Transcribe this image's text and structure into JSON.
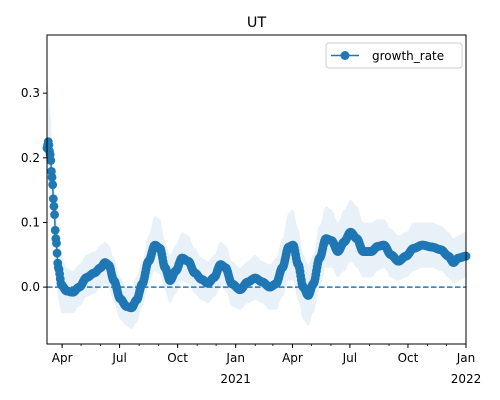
{
  "chart_data": {
    "type": "line",
    "title": "UT",
    "xlabel": "",
    "ylabel": "",
    "x_start": "2020-03-08",
    "x_end": "2022-01-01",
    "ylim": [
      -0.088,
      0.39
    ],
    "y_ticks": [
      0.0,
      0.1,
      0.2,
      0.3
    ],
    "y_tick_labels": [
      "0.0",
      "0.1",
      "0.2",
      "0.3"
    ],
    "x_ticks": [
      {
        "date": "2020-04-01",
        "label": "Apr",
        "sublabel": ""
      },
      {
        "date": "2020-07-01",
        "label": "Jul",
        "sublabel": ""
      },
      {
        "date": "2020-10-01",
        "label": "Oct",
        "sublabel": ""
      },
      {
        "date": "2021-01-01",
        "label": "Jan",
        "sublabel": "2021"
      },
      {
        "date": "2021-04-01",
        "label": "Apr",
        "sublabel": ""
      },
      {
        "date": "2021-07-01",
        "label": "Jul",
        "sublabel": ""
      },
      {
        "date": "2021-10-01",
        "label": "Oct",
        "sublabel": ""
      },
      {
        "date": "2022-01-01",
        "label": "Jan",
        "sublabel": "2022"
      }
    ],
    "reference_line": {
      "y": 0.0,
      "style": "dashed",
      "color": "#1f77b4"
    },
    "legend": {
      "position": "top-right",
      "entries": [
        {
          "label": "growth_rate",
          "color": "#1f77b4",
          "marker": "circle"
        }
      ]
    },
    "grid": false,
    "series": [
      {
        "name": "growth_rate",
        "color": "#1f77b4",
        "band_color": "#1f77b4",
        "band_opacity": 0.1,
        "points": [
          {
            "x": "2020-03-08",
            "y": 0.215,
            "lo": 0.15,
            "hi": 0.33
          },
          {
            "x": "2020-03-10",
            "y": 0.225,
            "lo": 0.16,
            "hi": 0.31
          },
          {
            "x": "2020-03-13",
            "y": 0.205,
            "lo": 0.15,
            "hi": 0.27
          },
          {
            "x": "2020-03-16",
            "y": 0.17,
            "lo": 0.12,
            "hi": 0.23
          },
          {
            "x": "2020-03-19",
            "y": 0.125,
            "lo": 0.08,
            "hi": 0.17
          },
          {
            "x": "2020-03-22",
            "y": 0.075,
            "lo": 0.03,
            "hi": 0.12
          },
          {
            "x": "2020-03-26",
            "y": 0.03,
            "lo": -0.02,
            "hi": 0.08
          },
          {
            "x": "2020-03-31",
            "y": 0.003,
            "lo": -0.04,
            "hi": 0.05
          },
          {
            "x": "2020-04-08",
            "y": -0.006,
            "lo": -0.04,
            "hi": 0.03
          },
          {
            "x": "2020-04-18",
            "y": -0.008,
            "lo": -0.04,
            "hi": 0.025
          },
          {
            "x": "2020-04-28",
            "y": 0.0,
            "lo": -0.03,
            "hi": 0.035
          },
          {
            "x": "2020-05-10",
            "y": 0.015,
            "lo": -0.015,
            "hi": 0.05
          },
          {
            "x": "2020-05-22",
            "y": 0.022,
            "lo": -0.01,
            "hi": 0.055
          },
          {
            "x": "2020-06-01",
            "y": 0.03,
            "lo": 0.0,
            "hi": 0.065
          },
          {
            "x": "2020-06-08",
            "y": 0.038,
            "lo": 0.005,
            "hi": 0.07
          },
          {
            "x": "2020-06-14",
            "y": 0.034,
            "lo": 0.0,
            "hi": 0.065
          },
          {
            "x": "2020-06-22",
            "y": 0.01,
            "lo": -0.025,
            "hi": 0.045
          },
          {
            "x": "2020-07-02",
            "y": -0.018,
            "lo": -0.05,
            "hi": 0.015
          },
          {
            "x": "2020-07-12",
            "y": -0.03,
            "lo": -0.06,
            "hi": 0.0
          },
          {
            "x": "2020-07-20",
            "y": -0.032,
            "lo": -0.065,
            "hi": 0.0
          },
          {
            "x": "2020-07-28",
            "y": -0.02,
            "lo": -0.055,
            "hi": 0.015
          },
          {
            "x": "2020-08-06",
            "y": 0.005,
            "lo": -0.03,
            "hi": 0.04
          },
          {
            "x": "2020-08-16",
            "y": 0.04,
            "lo": 0.005,
            "hi": 0.08
          },
          {
            "x": "2020-08-26",
            "y": 0.065,
            "lo": 0.025,
            "hi": 0.11
          },
          {
            "x": "2020-09-03",
            "y": 0.06,
            "lo": 0.02,
            "hi": 0.105
          },
          {
            "x": "2020-09-11",
            "y": 0.03,
            "lo": -0.005,
            "hi": 0.07
          },
          {
            "x": "2020-09-19",
            "y": 0.01,
            "lo": -0.025,
            "hi": 0.05
          },
          {
            "x": "2020-09-28",
            "y": 0.025,
            "lo": -0.01,
            "hi": 0.065
          },
          {
            "x": "2020-10-08",
            "y": 0.045,
            "lo": 0.01,
            "hi": 0.085
          },
          {
            "x": "2020-10-18",
            "y": 0.04,
            "lo": 0.005,
            "hi": 0.08
          },
          {
            "x": "2020-10-28",
            "y": 0.022,
            "lo": -0.01,
            "hi": 0.06
          },
          {
            "x": "2020-11-08",
            "y": 0.012,
            "lo": -0.02,
            "hi": 0.045
          },
          {
            "x": "2020-11-18",
            "y": 0.006,
            "lo": -0.025,
            "hi": 0.04
          },
          {
            "x": "2020-11-28",
            "y": 0.015,
            "lo": -0.015,
            "hi": 0.05
          },
          {
            "x": "2020-12-08",
            "y": 0.035,
            "lo": 0.0,
            "hi": 0.07
          },
          {
            "x": "2020-12-16",
            "y": 0.03,
            "lo": -0.005,
            "hi": 0.065
          },
          {
            "x": "2020-12-26",
            "y": 0.005,
            "lo": -0.03,
            "hi": 0.04
          },
          {
            "x": "2021-01-08",
            "y": -0.004,
            "lo": -0.035,
            "hi": 0.03
          },
          {
            "x": "2021-01-20",
            "y": 0.008,
            "lo": -0.025,
            "hi": 0.04
          },
          {
            "x": "2021-02-01",
            "y": 0.014,
            "lo": -0.02,
            "hi": 0.05
          },
          {
            "x": "2021-02-12",
            "y": 0.008,
            "lo": -0.025,
            "hi": 0.04
          },
          {
            "x": "2021-02-24",
            "y": 0.0,
            "lo": -0.035,
            "hi": 0.035
          },
          {
            "x": "2021-03-06",
            "y": 0.005,
            "lo": -0.035,
            "hi": 0.045
          },
          {
            "x": "2021-03-16",
            "y": 0.03,
            "lo": -0.015,
            "hi": 0.075
          },
          {
            "x": "2021-03-26",
            "y": 0.062,
            "lo": 0.01,
            "hi": 0.115
          },
          {
            "x": "2021-04-02",
            "y": 0.065,
            "lo": 0.01,
            "hi": 0.12
          },
          {
            "x": "2021-04-10",
            "y": 0.035,
            "lo": -0.02,
            "hi": 0.09
          },
          {
            "x": "2021-04-18",
            "y": 0.0,
            "lo": -0.05,
            "hi": 0.05
          },
          {
            "x": "2021-04-26",
            "y": -0.013,
            "lo": -0.06,
            "hi": 0.035
          },
          {
            "x": "2021-05-04",
            "y": 0.005,
            "lo": -0.04,
            "hi": 0.05
          },
          {
            "x": "2021-05-14",
            "y": 0.045,
            "lo": 0.0,
            "hi": 0.095
          },
          {
            "x": "2021-05-24",
            "y": 0.075,
            "lo": 0.03,
            "hi": 0.125
          },
          {
            "x": "2021-06-02",
            "y": 0.072,
            "lo": 0.03,
            "hi": 0.12
          },
          {
            "x": "2021-06-12",
            "y": 0.055,
            "lo": 0.015,
            "hi": 0.1
          },
          {
            "x": "2021-06-22",
            "y": 0.07,
            "lo": 0.025,
            "hi": 0.12
          },
          {
            "x": "2021-07-02",
            "y": 0.085,
            "lo": 0.04,
            "hi": 0.135
          },
          {
            "x": "2021-07-12",
            "y": 0.075,
            "lo": 0.03,
            "hi": 0.125
          },
          {
            "x": "2021-07-22",
            "y": 0.055,
            "lo": 0.015,
            "hi": 0.1
          },
          {
            "x": "2021-08-04",
            "y": 0.055,
            "lo": 0.015,
            "hi": 0.1
          },
          {
            "x": "2021-08-14",
            "y": 0.063,
            "lo": 0.025,
            "hi": 0.105
          },
          {
            "x": "2021-08-24",
            "y": 0.065,
            "lo": 0.03,
            "hi": 0.105
          },
          {
            "x": "2021-09-04",
            "y": 0.05,
            "lo": 0.015,
            "hi": 0.09
          },
          {
            "x": "2021-09-16",
            "y": 0.04,
            "lo": 0.01,
            "hi": 0.08
          },
          {
            "x": "2021-09-28",
            "y": 0.048,
            "lo": 0.015,
            "hi": 0.085
          },
          {
            "x": "2021-10-10",
            "y": 0.06,
            "lo": 0.025,
            "hi": 0.1
          },
          {
            "x": "2021-10-24",
            "y": 0.065,
            "lo": 0.03,
            "hi": 0.1
          },
          {
            "x": "2021-11-08",
            "y": 0.062,
            "lo": 0.03,
            "hi": 0.1
          },
          {
            "x": "2021-11-22",
            "y": 0.058,
            "lo": 0.025,
            "hi": 0.095
          },
          {
            "x": "2021-12-04",
            "y": 0.048,
            "lo": 0.015,
            "hi": 0.085
          },
          {
            "x": "2021-12-12",
            "y": 0.038,
            "lo": 0.005,
            "hi": 0.075
          },
          {
            "x": "2021-12-20",
            "y": 0.045,
            "lo": 0.01,
            "hi": 0.08
          },
          {
            "x": "2022-01-01",
            "y": 0.048,
            "lo": 0.015,
            "hi": 0.085
          }
        ]
      }
    ]
  }
}
